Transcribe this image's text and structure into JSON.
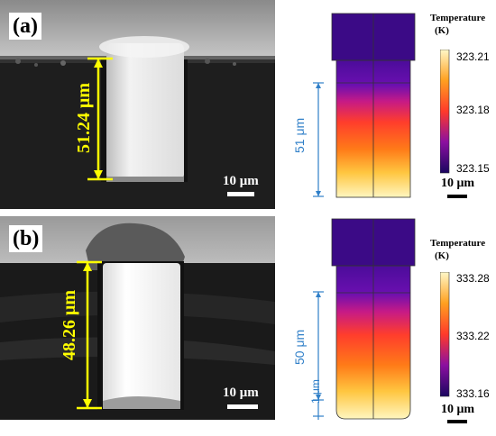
{
  "panel_a": {
    "label": "(a)",
    "measurement": "51.24 μm",
    "scale": "10 μm",
    "sim_depth": "51 μm",
    "colorbar": {
      "title_line1": "Temperature",
      "title_line2": "(K)",
      "max": "323.21",
      "mid": "323.18",
      "min": "323.15"
    },
    "sim_scale": "10 μm"
  },
  "panel_b": {
    "label": "(b)",
    "measurement": "48.26 μm",
    "scale": "10 μm",
    "sim_depth": "50 μm",
    "sim_depth_small": "1 μm",
    "colorbar": {
      "title_line1": "Temperature",
      "title_line2": "(K)",
      "max": "333.28",
      "mid": "333.22",
      "min": "333.16"
    },
    "sim_scale": "10 μm"
  },
  "colors": {
    "annotation_yellow": "#ffff00",
    "dimension_blue": "#2f7fc8",
    "heat_top": "#3a0a8c",
    "heat_mid": "#ff4a2a",
    "heat_bottom": "#fff4b0"
  }
}
